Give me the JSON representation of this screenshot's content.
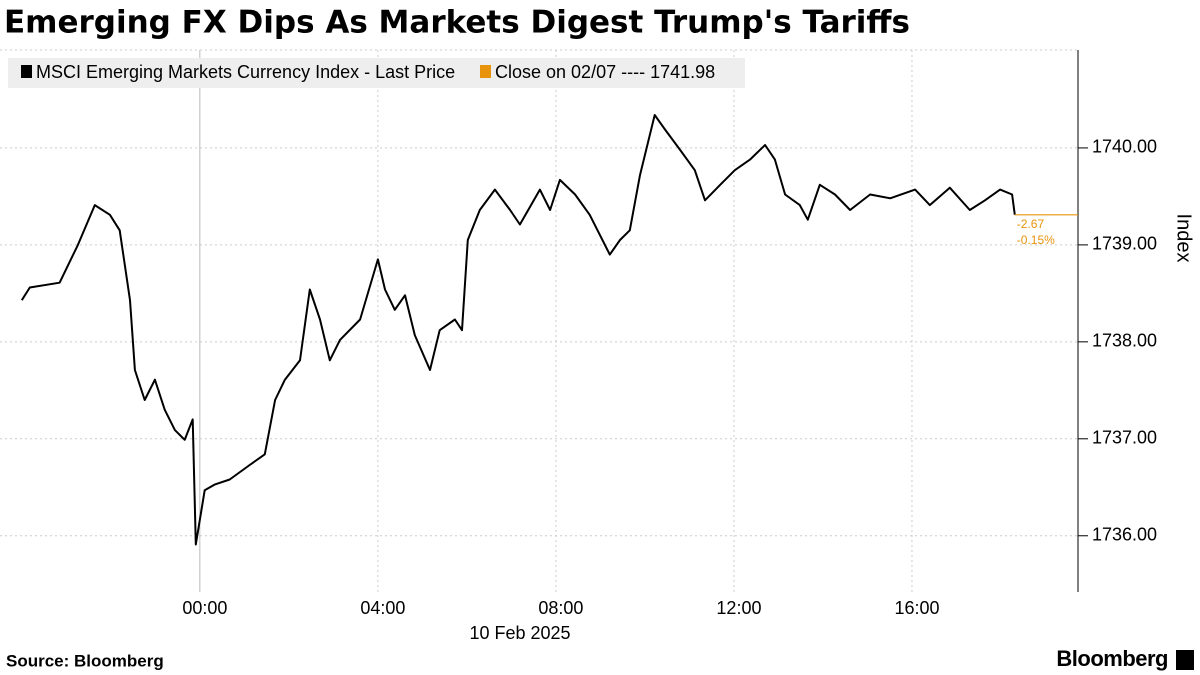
{
  "chart_data": {
    "type": "line",
    "title": "Emerging FX Dips As Markets Digest Trump's Tariffs",
    "xlabel": "10 Feb 2025",
    "ylabel": "Index",
    "source": "Source: Bloomberg",
    "brand": "Bloomberg",
    "x": [
      -4.0,
      -3.82,
      -3.15,
      -2.74,
      -2.36,
      -2.02,
      -1.8,
      -1.57,
      -1.46,
      -1.24,
      -1.01,
      -0.79,
      -0.56,
      -0.34,
      -0.16,
      -0.09,
      0.11,
      0.34,
      0.67,
      1.12,
      1.46,
      1.69,
      1.91,
      2.25,
      2.47,
      2.7,
      2.92,
      3.15,
      3.6,
      4.0,
      4.16,
      4.38,
      4.61,
      4.83,
      5.17,
      5.39,
      5.73,
      5.89,
      6.02,
      6.29,
      6.63,
      6.97,
      7.19,
      7.64,
      7.87,
      8.09,
      8.43,
      8.76,
      9.21,
      9.44,
      9.66,
      9.89,
      10.22,
      10.45,
      10.79,
      11.12,
      11.35,
      11.69,
      12.02,
      12.36,
      12.7,
      12.92,
      13.15,
      13.48,
      13.66,
      13.93,
      14.27,
      14.61,
      15.06,
      15.51,
      16.07,
      16.4,
      16.85,
      17.3,
      17.64,
      17.98,
      18.25,
      18.31
    ],
    "series": [
      {
        "name": "MSCI Emerging Markets Currency Index - Last Price",
        "color": "#000000",
        "values": [
          1738.43,
          1738.56,
          1738.61,
          1739.0,
          1739.41,
          1739.31,
          1739.15,
          1738.43,
          1737.71,
          1737.4,
          1737.61,
          1737.3,
          1737.09,
          1736.99,
          1737.2,
          1735.91,
          1736.47,
          1736.53,
          1736.58,
          1736.73,
          1736.84,
          1737.4,
          1737.61,
          1737.81,
          1738.54,
          1738.23,
          1737.81,
          1738.02,
          1738.23,
          1738.85,
          1738.54,
          1738.33,
          1738.48,
          1738.07,
          1737.71,
          1738.12,
          1738.23,
          1738.12,
          1739.05,
          1739.36,
          1739.57,
          1739.36,
          1739.21,
          1739.57,
          1739.36,
          1739.67,
          1739.52,
          1739.31,
          1738.9,
          1739.05,
          1739.15,
          1739.72,
          1740.34,
          1740.19,
          1739.98,
          1739.77,
          1739.46,
          1739.62,
          1739.77,
          1739.88,
          1740.03,
          1739.88,
          1739.52,
          1739.41,
          1739.26,
          1739.62,
          1739.52,
          1739.36,
          1739.52,
          1739.48,
          1739.57,
          1739.41,
          1739.59,
          1739.36,
          1739.46,
          1739.57,
          1739.52,
          1739.31
        ]
      }
    ],
    "reference": {
      "name": "Close on 02/07 ---- 1741.98",
      "color": "#e8930c"
    },
    "last_change": {
      "values": [
        -2.67,
        -0.15
      ],
      "value_labels": [
        "-2.67",
        "-0.15%"
      ]
    },
    "xlim": [
      -4.49,
      19.73
    ],
    "xticks": [
      {
        "value": 0,
        "label": "00:00"
      },
      {
        "value": 4,
        "label": "04:00"
      },
      {
        "value": 8,
        "label": "08:00"
      },
      {
        "value": 12,
        "label": "12:00"
      },
      {
        "value": 16,
        "label": "16:00"
      }
    ],
    "ylim": [
      1735.42,
      1741.01
    ],
    "yticks": [
      {
        "value": 1736,
        "label": "1736.00"
      },
      {
        "value": 1737,
        "label": "1737.00"
      },
      {
        "value": 1738,
        "label": "1738.00"
      },
      {
        "value": 1739,
        "label": "1739.00"
      },
      {
        "value": 1740,
        "label": "1740.00"
      }
    ],
    "grid": true
  }
}
